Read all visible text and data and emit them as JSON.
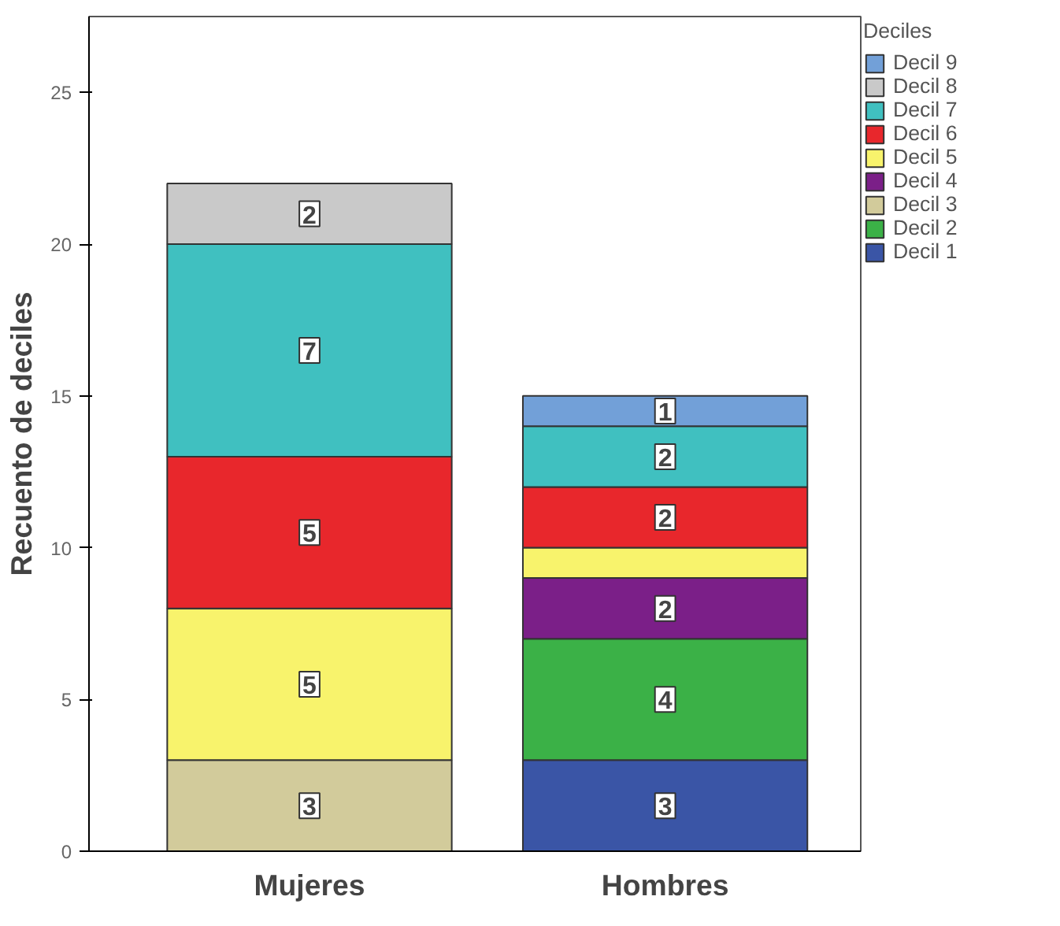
{
  "chart_data": {
    "type": "bar",
    "stacked": true,
    "ylabel": "Recuento de deciles",
    "legend_title": "Deciles",
    "legend": "right",
    "grid": false,
    "categories": [
      "Mujeres",
      "Hombres"
    ],
    "ylim": [
      0,
      27.5
    ],
    "yticks": [
      0,
      5,
      10,
      15,
      20,
      25
    ],
    "series": [
      {
        "name": "Decil 1",
        "color": "#3a55a6",
        "values": [
          null,
          3
        ],
        "value_labels": [
          null,
          "3"
        ]
      },
      {
        "name": "Decil 2",
        "color": "#3bb147",
        "values": [
          null,
          4
        ],
        "value_labels": [
          null,
          "4"
        ]
      },
      {
        "name": "Decil 3",
        "color": "#d2cb9b",
        "values": [
          3,
          null
        ],
        "value_labels": [
          "3",
          null
        ]
      },
      {
        "name": "Decil 4",
        "color": "#7b1f88",
        "values": [
          null,
          2
        ],
        "value_labels": [
          null,
          "2"
        ]
      },
      {
        "name": "Decil 5",
        "color": "#f8f36c",
        "values": [
          5,
          1
        ],
        "value_labels": [
          "5",
          null
        ]
      },
      {
        "name": "Decil 6",
        "color": "#e8272c",
        "values": [
          5,
          2
        ],
        "value_labels": [
          "5",
          "2"
        ]
      },
      {
        "name": "Decil 7",
        "color": "#40c0c0",
        "values": [
          7,
          2
        ],
        "value_labels": [
          "7",
          "2"
        ]
      },
      {
        "name": "Decil 8",
        "color": "#c9c9c9",
        "values": [
          2,
          null
        ],
        "value_labels": [
          "2",
          null
        ]
      },
      {
        "name": "Decil 9",
        "color": "#72a0d8",
        "values": [
          null,
          1
        ],
        "value_labels": [
          null,
          "1"
        ]
      }
    ]
  }
}
